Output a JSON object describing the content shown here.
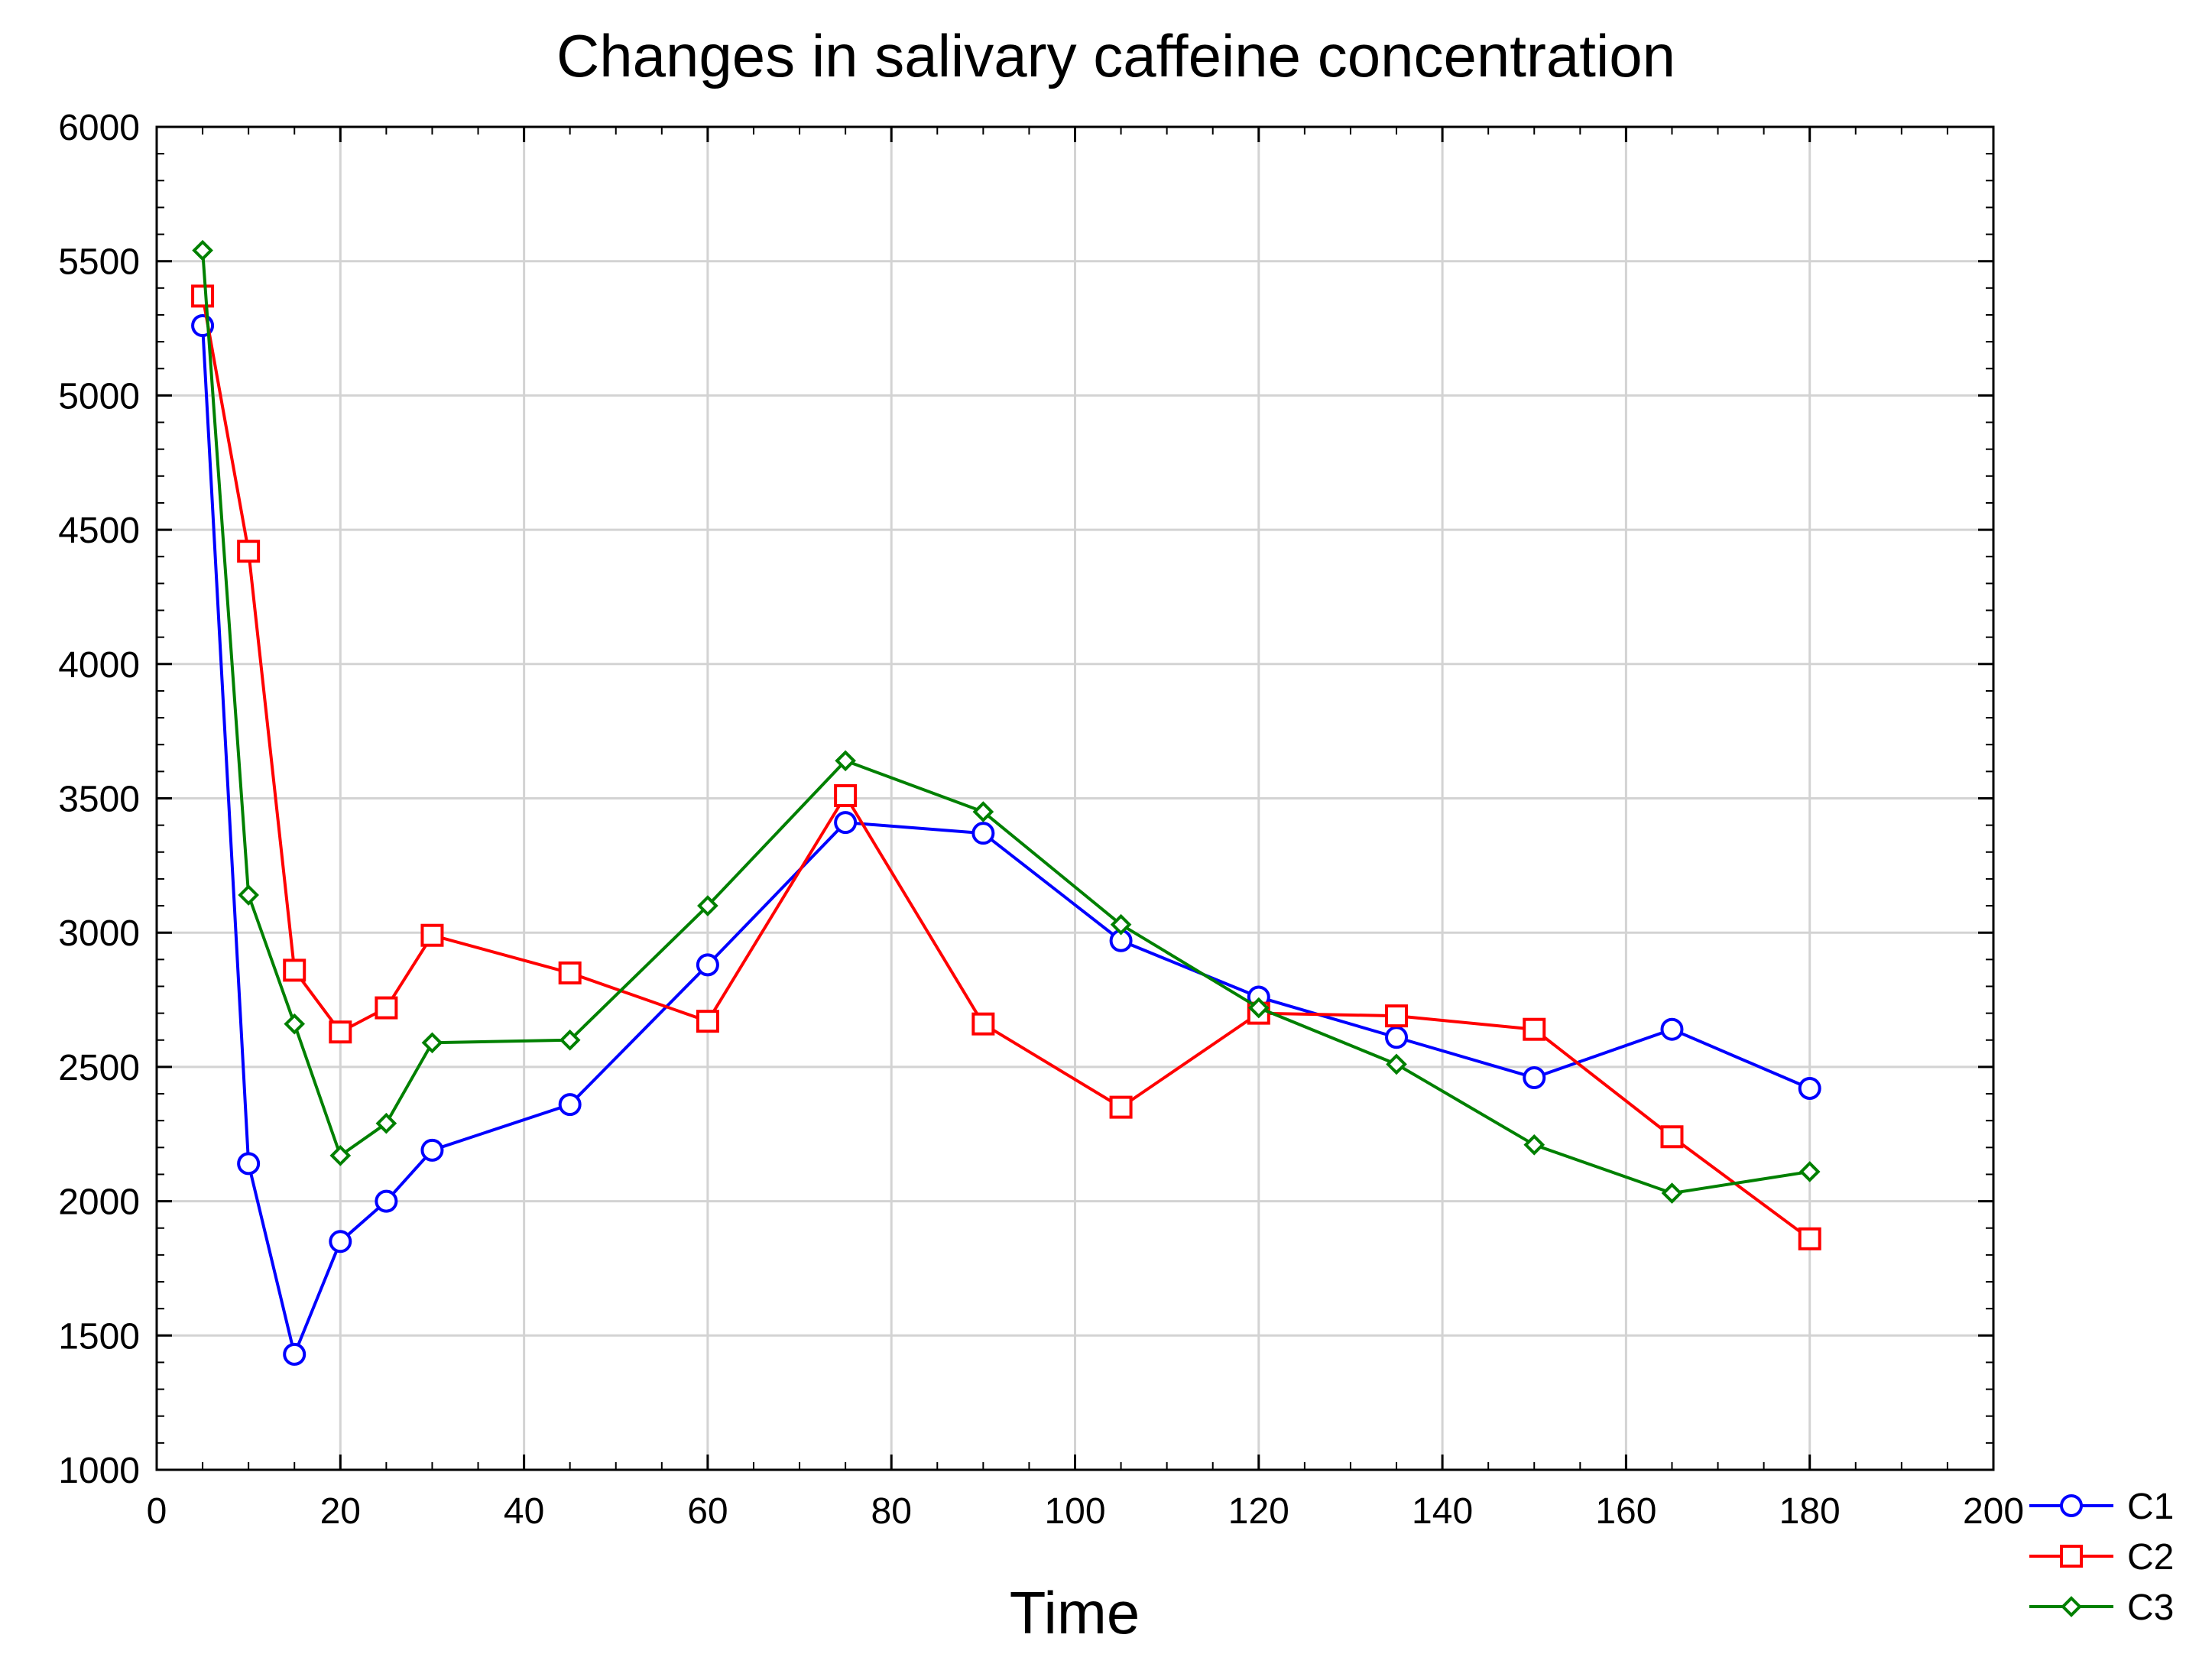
{
  "chart_data": {
    "type": "line",
    "title": "Changes in salivary caffeine concentration",
    "xlabel": "Time",
    "ylabel": "",
    "xlim": [
      0,
      200
    ],
    "ylim": [
      1000,
      6000
    ],
    "xticks": [
      0,
      20,
      40,
      60,
      80,
      100,
      120,
      140,
      160,
      180,
      200
    ],
    "yticks": [
      1000,
      1500,
      2000,
      2500,
      3000,
      3500,
      4000,
      4500,
      5000,
      5500,
      6000
    ],
    "grid": true,
    "legend_position": "bottom-right, outside plot",
    "x": [
      5,
      10,
      15,
      20,
      25,
      30,
      45,
      60,
      75,
      90,
      105,
      120,
      135,
      150,
      165,
      180
    ],
    "series": [
      {
        "name": "C1",
        "color": "#0000ff",
        "marker": "circle",
        "values": [
          5260,
          2140,
          1430,
          1850,
          2000,
          2190,
          2360,
          2880,
          3410,
          3370,
          2970,
          2760,
          2610,
          2460,
          2640,
          2420
        ]
      },
      {
        "name": "C2",
        "color": "#ff0000",
        "marker": "square",
        "values": [
          5370,
          4420,
          2860,
          2630,
          2720,
          2990,
          2850,
          2670,
          3510,
          2660,
          2350,
          2700,
          2690,
          2640,
          2240,
          1860
        ]
      },
      {
        "name": "C3",
        "color": "#008000",
        "marker": "diamond",
        "values": [
          5540,
          3140,
          2660,
          2170,
          2290,
          2590,
          2600,
          3100,
          3640,
          3450,
          3030,
          2720,
          2510,
          2210,
          2030,
          2110
        ]
      }
    ]
  }
}
